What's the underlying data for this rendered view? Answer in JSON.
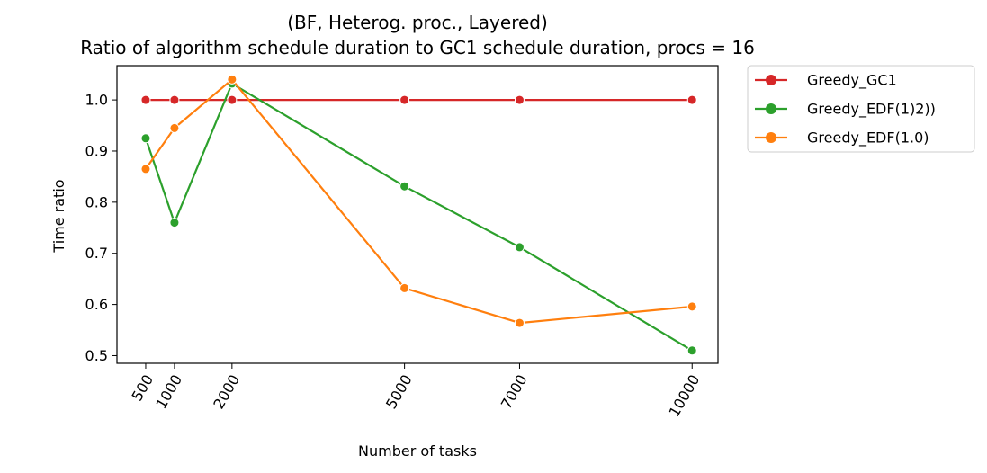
{
  "chart_data": {
    "type": "line",
    "title": "(BF, Heterog. proc., Layered)",
    "subtitle": "Ratio of algorithm schedule duration to GC1 schedule duration, procs = 16",
    "xlabel": "Number of tasks",
    "ylabel": "Time ratio",
    "x": [
      500,
      1000,
      2000,
      5000,
      7000,
      10000
    ],
    "x_tick_labels": [
      "500",
      "1000",
      "2000",
      "5000",
      "7000",
      "10000"
    ],
    "y_ticks": [
      0.5,
      0.6,
      0.7,
      0.8,
      0.9,
      1.0
    ],
    "y_tick_labels": [
      "0.5",
      "0.6",
      "0.7",
      "0.8",
      "0.9",
      "1.0"
    ],
    "xlim": [
      0,
      10450
    ],
    "ylim": [
      0.485,
      1.067
    ],
    "grid": false,
    "legend_position": "outside-right",
    "series": [
      {
        "name": "Greedy_GC1",
        "color": "#d62728",
        "values": [
          1.0,
          1.0,
          1.0,
          1.0,
          1.0,
          1.0
        ]
      },
      {
        "name": "Greedy_EDF(1)2))",
        "color": "#2ca02c",
        "values": [
          0.925,
          0.76,
          1.032,
          0.831,
          0.712,
          0.51
        ]
      },
      {
        "name": "Greedy_EDF(1.0)",
        "color": "#ff7f0e",
        "values": [
          0.865,
          0.945,
          1.04,
          0.632,
          0.564,
          0.596
        ]
      }
    ]
  }
}
